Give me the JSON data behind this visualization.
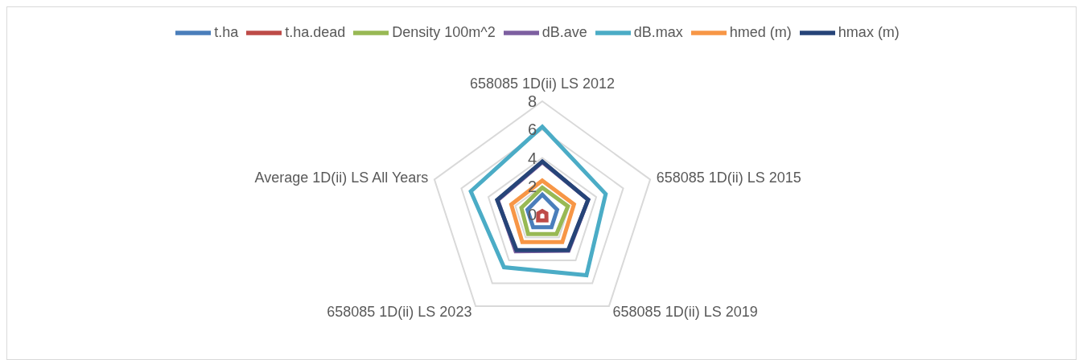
{
  "chart_data": {
    "type": "radar",
    "categories": [
      "658085 1D(ii) LS 2012",
      "658085 1D(ii) LS 2015",
      "658085 1D(ii) LS 2019",
      "658085 1D(ii) LS 2023",
      "Average 1D(ii) LS All Years"
    ],
    "series": [
      {
        "name": "t.ha",
        "color": "#4a7ebb",
        "values": [
          1.4,
          1.1,
          1.1,
          1.1,
          1.1
        ]
      },
      {
        "name": "t.ha.dead",
        "color": "#be4b48",
        "values": [
          0.25,
          0.3,
          0.5,
          0.5,
          0.3
        ]
      },
      {
        "name": "Density 100m^2",
        "color": "#98b954",
        "values": [
          1.9,
          1.9,
          1.7,
          1.7,
          1.55
        ]
      },
      {
        "name": "dB.ave",
        "color": "#7d5fa0",
        "values": [
          3.7,
          3.4,
          3.15,
          3.2,
          3.3
        ]
      },
      {
        "name": "dB.max",
        "color": "#4bacc6",
        "values": [
          6.2,
          4.7,
          5.3,
          4.6,
          5.3
        ]
      },
      {
        "name": "hmed (m)",
        "color": "#f79646",
        "values": [
          2.4,
          2.35,
          2.4,
          2.4,
          2.3
        ]
      },
      {
        "name": "hmax (m)",
        "color": "#264478",
        "values": [
          3.75,
          3.4,
          3.1,
          3.1,
          3.35
        ]
      }
    ],
    "ylim": [
      0,
      8
    ],
    "yticks": [
      0,
      2,
      4,
      6,
      8
    ],
    "grid": true,
    "legend": "top"
  }
}
